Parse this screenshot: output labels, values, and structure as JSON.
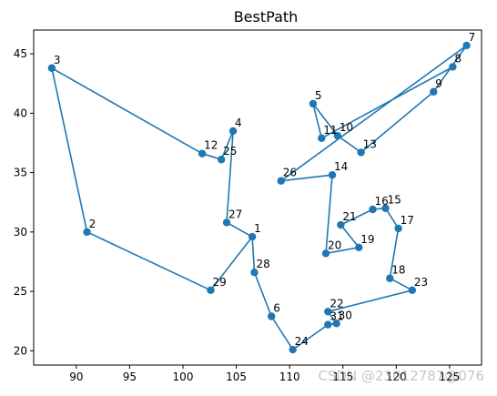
{
  "chart_data": {
    "type": "line",
    "title": "BestPath",
    "xlabel": "",
    "ylabel": "",
    "xlim": [
      86.0,
      128.0
    ],
    "ylim": [
      18.8,
      47.0
    ],
    "xticks": [
      90,
      95,
      100,
      105,
      110,
      115,
      120,
      125
    ],
    "yticks": [
      20,
      25,
      30,
      35,
      40,
      45
    ],
    "line_color": "#1f77b4",
    "grid": false,
    "points": [
      {
        "label": "1",
        "x": 106.5,
        "y": 29.6
      },
      {
        "label": "2",
        "x": 91.0,
        "y": 30.0
      },
      {
        "label": "3",
        "x": 87.7,
        "y": 43.8
      },
      {
        "label": "4",
        "x": 104.7,
        "y": 38.5
      },
      {
        "label": "5",
        "x": 112.2,
        "y": 40.8
      },
      {
        "label": "6",
        "x": 108.3,
        "y": 22.9
      },
      {
        "label": "7",
        "x": 126.6,
        "y": 45.7
      },
      {
        "label": "8",
        "x": 125.3,
        "y": 43.9
      },
      {
        "label": "9",
        "x": 123.5,
        "y": 41.8
      },
      {
        "label": "10",
        "x": 114.5,
        "y": 38.1
      },
      {
        "label": "11",
        "x": 113.0,
        "y": 37.9
      },
      {
        "label": "12",
        "x": 101.8,
        "y": 36.6
      },
      {
        "label": "13",
        "x": 116.7,
        "y": 36.7
      },
      {
        "label": "14",
        "x": 114.0,
        "y": 34.8
      },
      {
        "label": "15",
        "x": 119.0,
        "y": 32.0
      },
      {
        "label": "16",
        "x": 117.8,
        "y": 31.9
      },
      {
        "label": "17",
        "x": 120.2,
        "y": 30.3
      },
      {
        "label": "18",
        "x": 119.4,
        "y": 26.1
      },
      {
        "label": "19",
        "x": 116.5,
        "y": 28.7
      },
      {
        "label": "20",
        "x": 113.4,
        "y": 28.2
      },
      {
        "label": "21",
        "x": 114.8,
        "y": 30.6
      },
      {
        "label": "22",
        "x": 113.6,
        "y": 23.3
      },
      {
        "label": "23",
        "x": 121.5,
        "y": 25.1
      },
      {
        "label": "24",
        "x": 110.3,
        "y": 20.1
      },
      {
        "label": "25",
        "x": 103.6,
        "y": 36.1
      },
      {
        "label": "26",
        "x": 109.2,
        "y": 34.3
      },
      {
        "label": "27",
        "x": 104.1,
        "y": 30.8
      },
      {
        "label": "28",
        "x": 106.7,
        "y": 26.6
      },
      {
        "label": "29",
        "x": 102.6,
        "y": 25.1
      },
      {
        "label": "30",
        "x": 114.4,
        "y": 22.3
      },
      {
        "label": "31",
        "x": 113.6,
        "y": 22.2
      }
    ],
    "path_order": [
      "1",
      "29",
      "2",
      "3",
      "12",
      "25",
      "4",
      "27",
      "1",
      "28",
      "6",
      "24",
      "31",
      "30",
      "22",
      "23",
      "18",
      "17",
      "15",
      "16",
      "21",
      "19",
      "20",
      "14",
      "26",
      "7",
      "9",
      "13",
      "10",
      "5",
      "11",
      "8"
    ]
  },
  "watermark": "CSDN @23012787@076"
}
